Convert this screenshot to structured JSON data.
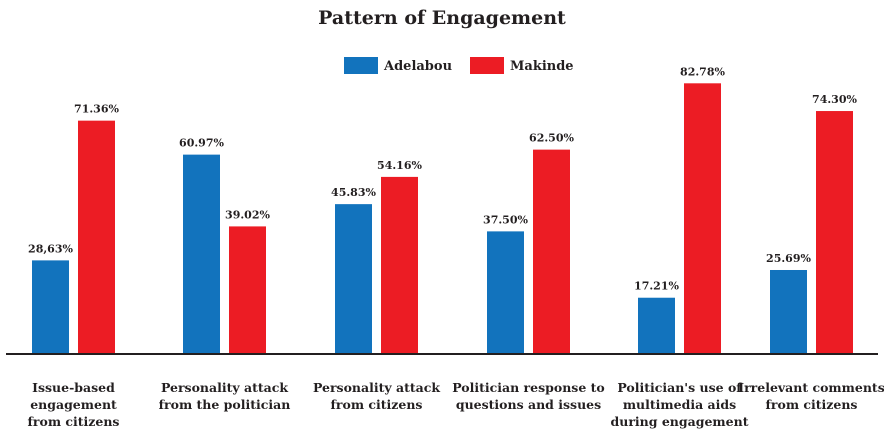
{
  "chart_data": {
    "type": "bar",
    "title": "Pattern of Engagement",
    "categories": [
      [
        "Issue-based",
        "engagement",
        "from citizens"
      ],
      [
        "Personality attack",
        "from the politician"
      ],
      [
        "Personality attack",
        "from citizens"
      ],
      [
        "Politician response to",
        "questions and issues"
      ],
      [
        "Politician's use of",
        "multimedia aids",
        "during engagement"
      ],
      [
        "Irrelevant comments",
        "from citizens"
      ]
    ],
    "series": [
      {
        "name": "Adelabou",
        "color": "#1273bd",
        "values": [
          28.63,
          60.97,
          45.83,
          37.5,
          17.21,
          25.69
        ],
        "labels": [
          "28,63%",
          "60.97%",
          "45.83%",
          "37.50%",
          "17.21%",
          "25.69%"
        ]
      },
      {
        "name": "Makinde",
        "color": "#ec1c24",
        "values": [
          71.36,
          39.02,
          54.16,
          62.5,
          82.78,
          74.3
        ],
        "labels": [
          "71.36%",
          "39.02%",
          "54.16%",
          "62.50%",
          "82.78%",
          "74.30%"
        ]
      }
    ],
    "ylim": [
      0,
      100
    ],
    "legend_position": "top-center",
    "grid": false,
    "axis_color": "#231f20"
  }
}
